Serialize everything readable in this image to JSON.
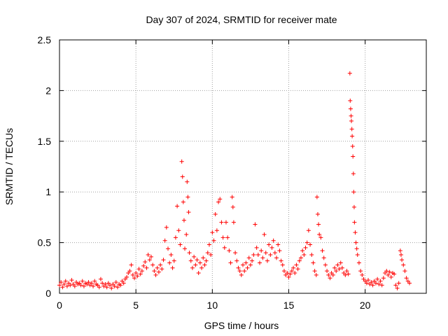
{
  "chart_data": {
    "type": "scatter",
    "title": "Day 307 of 2024, SRMTID for receiver mate",
    "xlabel": "GPS time / hours",
    "ylabel": "SRMTID / TECUs",
    "xlim": [
      0,
      24
    ],
    "ylim": [
      0,
      2.5
    ],
    "x_ticks": [
      0,
      5,
      10,
      15,
      20
    ],
    "x_tick_labels": [
      "0",
      "5",
      "10",
      "15",
      "20"
    ],
    "y_ticks": [
      0,
      0.5,
      1,
      1.5,
      2,
      2.5
    ],
    "y_tick_labels": [
      "0",
      "0.5",
      "1",
      "1.5",
      "2",
      "2.5"
    ],
    "grid": true,
    "series": [
      {
        "name": "SRMTID",
        "color": "#ff0000",
        "marker": "plus",
        "points": [
          [
            0.0,
            0.08
          ],
          [
            0.1,
            0.11
          ],
          [
            0.2,
            0.06
          ],
          [
            0.3,
            0.09
          ],
          [
            0.4,
            0.12
          ],
          [
            0.5,
            0.07
          ],
          [
            0.6,
            0.1
          ],
          [
            0.7,
            0.08
          ],
          [
            0.8,
            0.13
          ],
          [
            0.9,
            0.09
          ],
          [
            1.0,
            0.07
          ],
          [
            1.1,
            0.11
          ],
          [
            1.2,
            0.09
          ],
          [
            1.3,
            0.1
          ],
          [
            1.4,
            0.08
          ],
          [
            1.5,
            0.12
          ],
          [
            1.6,
            0.07
          ],
          [
            1.7,
            0.1
          ],
          [
            1.8,
            0.09
          ],
          [
            1.9,
            0.11
          ],
          [
            2.0,
            0.08
          ],
          [
            2.1,
            0.1
          ],
          [
            2.2,
            0.07
          ],
          [
            2.3,
            0.12
          ],
          [
            2.4,
            0.09
          ],
          [
            2.5,
            0.08
          ],
          [
            2.6,
            0.06
          ],
          [
            2.7,
            0.14
          ],
          [
            2.8,
            0.1
          ],
          [
            2.9,
            0.07
          ],
          [
            3.0,
            0.09
          ],
          [
            3.1,
            0.06
          ],
          [
            3.2,
            0.1
          ],
          [
            3.3,
            0.08
          ],
          [
            3.4,
            0.05
          ],
          [
            3.5,
            0.09
          ],
          [
            3.6,
            0.07
          ],
          [
            3.7,
            0.11
          ],
          [
            3.8,
            0.06
          ],
          [
            3.9,
            0.09
          ],
          [
            4.0,
            0.08
          ],
          [
            4.1,
            0.12
          ],
          [
            4.2,
            0.1
          ],
          [
            4.3,
            0.14
          ],
          [
            4.4,
            0.16
          ],
          [
            4.5,
            0.2
          ],
          [
            4.6,
            0.22
          ],
          [
            4.7,
            0.28
          ],
          [
            4.8,
            0.18
          ],
          [
            4.9,
            0.15
          ],
          [
            5.0,
            0.2
          ],
          [
            5.1,
            0.17
          ],
          [
            5.2,
            0.24
          ],
          [
            5.3,
            0.19
          ],
          [
            5.4,
            0.22
          ],
          [
            5.5,
            0.27
          ],
          [
            5.6,
            0.31
          ],
          [
            5.7,
            0.25
          ],
          [
            5.8,
            0.38
          ],
          [
            5.9,
            0.33
          ],
          [
            6.0,
            0.36
          ],
          [
            6.1,
            0.28
          ],
          [
            6.2,
            0.22
          ],
          [
            6.3,
            0.18
          ],
          [
            6.4,
            0.25
          ],
          [
            6.5,
            0.21
          ],
          [
            6.6,
            0.28
          ],
          [
            6.7,
            0.24
          ],
          [
            6.8,
            0.33
          ],
          [
            6.9,
            0.52
          ],
          [
            7.0,
            0.65
          ],
          [
            7.1,
            0.44
          ],
          [
            7.2,
            0.3
          ],
          [
            7.3,
            0.38
          ],
          [
            7.4,
            0.25
          ],
          [
            7.5,
            0.32
          ],
          [
            7.6,
            0.55
          ],
          [
            7.7,
            0.86
          ],
          [
            7.8,
            0.62
          ],
          [
            7.9,
            0.48
          ],
          [
            8.0,
            1.3
          ],
          [
            8.05,
            1.15
          ],
          [
            8.1,
            0.9
          ],
          [
            8.15,
            0.72
          ],
          [
            8.2,
            0.44
          ],
          [
            8.3,
            0.58
          ],
          [
            8.35,
            1.1
          ],
          [
            8.4,
            0.95
          ],
          [
            8.45,
            0.8
          ],
          [
            8.5,
            0.4
          ],
          [
            8.6,
            0.32
          ],
          [
            8.7,
            0.25
          ],
          [
            8.8,
            0.36
          ],
          [
            8.9,
            0.28
          ],
          [
            9.0,
            0.33
          ],
          [
            9.1,
            0.2
          ],
          [
            9.2,
            0.3
          ],
          [
            9.3,
            0.25
          ],
          [
            9.4,
            0.35
          ],
          [
            9.5,
            0.28
          ],
          [
            9.6,
            0.32
          ],
          [
            9.7,
            0.4
          ],
          [
            9.8,
            0.48
          ],
          [
            9.9,
            0.38
          ],
          [
            10.0,
            0.6
          ],
          [
            10.1,
            0.52
          ],
          [
            10.2,
            0.78
          ],
          [
            10.3,
            0.62
          ],
          [
            10.4,
            0.9
          ],
          [
            10.5,
            0.93
          ],
          [
            10.6,
            0.7
          ],
          [
            10.7,
            0.55
          ],
          [
            10.8,
            0.45
          ],
          [
            10.9,
            0.7
          ],
          [
            11.0,
            0.55
          ],
          [
            11.1,
            0.42
          ],
          [
            11.2,
            0.3
          ],
          [
            11.3,
            0.95
          ],
          [
            11.35,
            0.85
          ],
          [
            11.4,
            0.7
          ],
          [
            11.5,
            0.4
          ],
          [
            11.6,
            0.32
          ],
          [
            11.7,
            0.25
          ],
          [
            11.8,
            0.22
          ],
          [
            11.9,
            0.18
          ],
          [
            12.0,
            0.28
          ],
          [
            12.1,
            0.22
          ],
          [
            12.2,
            0.3
          ],
          [
            12.3,
            0.25
          ],
          [
            12.4,
            0.35
          ],
          [
            12.5,
            0.28
          ],
          [
            12.6,
            0.32
          ],
          [
            12.7,
            0.38
          ],
          [
            12.8,
            0.68
          ],
          [
            12.9,
            0.45
          ],
          [
            13.0,
            0.38
          ],
          [
            13.1,
            0.3
          ],
          [
            13.2,
            0.42
          ],
          [
            13.3,
            0.35
          ],
          [
            13.4,
            0.58
          ],
          [
            13.5,
            0.4
          ],
          [
            13.6,
            0.32
          ],
          [
            13.7,
            0.48
          ],
          [
            13.8,
            0.38
          ],
          [
            13.9,
            0.45
          ],
          [
            14.0,
            0.52
          ],
          [
            14.1,
            0.4
          ],
          [
            14.2,
            0.35
          ],
          [
            14.3,
            0.48
          ],
          [
            14.4,
            0.42
          ],
          [
            14.5,
            0.32
          ],
          [
            14.6,
            0.28
          ],
          [
            14.7,
            0.22
          ],
          [
            14.8,
            0.18
          ],
          [
            14.9,
            0.2
          ],
          [
            15.0,
            0.16
          ],
          [
            15.1,
            0.19
          ],
          [
            15.2,
            0.22
          ],
          [
            15.3,
            0.25
          ],
          [
            15.4,
            0.2
          ],
          [
            15.5,
            0.28
          ],
          [
            15.6,
            0.24
          ],
          [
            15.7,
            0.32
          ],
          [
            15.8,
            0.35
          ],
          [
            15.9,
            0.42
          ],
          [
            16.0,
            0.38
          ],
          [
            16.1,
            0.45
          ],
          [
            16.2,
            0.5
          ],
          [
            16.3,
            0.62
          ],
          [
            16.4,
            0.48
          ],
          [
            16.5,
            0.38
          ],
          [
            16.6,
            0.3
          ],
          [
            16.7,
            0.22
          ],
          [
            16.8,
            0.18
          ],
          [
            16.85,
            0.95
          ],
          [
            16.9,
            0.78
          ],
          [
            16.95,
            0.68
          ],
          [
            17.0,
            0.58
          ],
          [
            17.1,
            0.55
          ],
          [
            17.2,
            0.42
          ],
          [
            17.3,
            0.35
          ],
          [
            17.4,
            0.28
          ],
          [
            17.5,
            0.22
          ],
          [
            17.6,
            0.18
          ],
          [
            17.7,
            0.15
          ],
          [
            17.8,
            0.2
          ],
          [
            17.9,
            0.18
          ],
          [
            18.0,
            0.25
          ],
          [
            18.1,
            0.22
          ],
          [
            18.2,
            0.28
          ],
          [
            18.3,
            0.24
          ],
          [
            18.4,
            0.3
          ],
          [
            18.5,
            0.25
          ],
          [
            18.6,
            0.2
          ],
          [
            18.7,
            0.18
          ],
          [
            18.8,
            0.22
          ],
          [
            18.9,
            0.19
          ],
          [
            19.0,
            2.17
          ],
          [
            19.02,
            1.9
          ],
          [
            19.05,
            1.82
          ],
          [
            19.08,
            1.75
          ],
          [
            19.1,
            1.7
          ],
          [
            19.13,
            1.62
          ],
          [
            19.15,
            1.55
          ],
          [
            19.18,
            1.45
          ],
          [
            19.2,
            1.35
          ],
          [
            19.23,
            1.18
          ],
          [
            19.25,
            1.0
          ],
          [
            19.28,
            0.85
          ],
          [
            19.3,
            0.7
          ],
          [
            19.35,
            0.6
          ],
          [
            19.4,
            0.5
          ],
          [
            19.45,
            0.44
          ],
          [
            19.5,
            0.38
          ],
          [
            19.6,
            0.3
          ],
          [
            19.7,
            0.22
          ],
          [
            19.8,
            0.18
          ],
          [
            19.9,
            0.14
          ],
          [
            20.0,
            0.12
          ],
          [
            20.1,
            0.1
          ],
          [
            20.2,
            0.13
          ],
          [
            20.3,
            0.09
          ],
          [
            20.4,
            0.11
          ],
          [
            20.5,
            0.08
          ],
          [
            20.6,
            0.12
          ],
          [
            20.7,
            0.1
          ],
          [
            20.8,
            0.14
          ],
          [
            20.9,
            0.09
          ],
          [
            21.0,
            0.12
          ],
          [
            21.1,
            0.08
          ],
          [
            21.2,
            0.15
          ],
          [
            21.3,
            0.2
          ],
          [
            21.4,
            0.22
          ],
          [
            21.5,
            0.18
          ],
          [
            21.6,
            0.21
          ],
          [
            21.7,
            0.16
          ],
          [
            21.8,
            0.2
          ],
          [
            21.9,
            0.19
          ],
          [
            22.0,
            0.08
          ],
          [
            22.1,
            0.05
          ],
          [
            22.2,
            0.1
          ],
          [
            22.3,
            0.42
          ],
          [
            22.35,
            0.38
          ],
          [
            22.4,
            0.33
          ],
          [
            22.5,
            0.28
          ],
          [
            22.6,
            0.22
          ],
          [
            22.7,
            0.15
          ],
          [
            22.8,
            0.12
          ],
          [
            22.9,
            0.1
          ]
        ]
      }
    ]
  }
}
